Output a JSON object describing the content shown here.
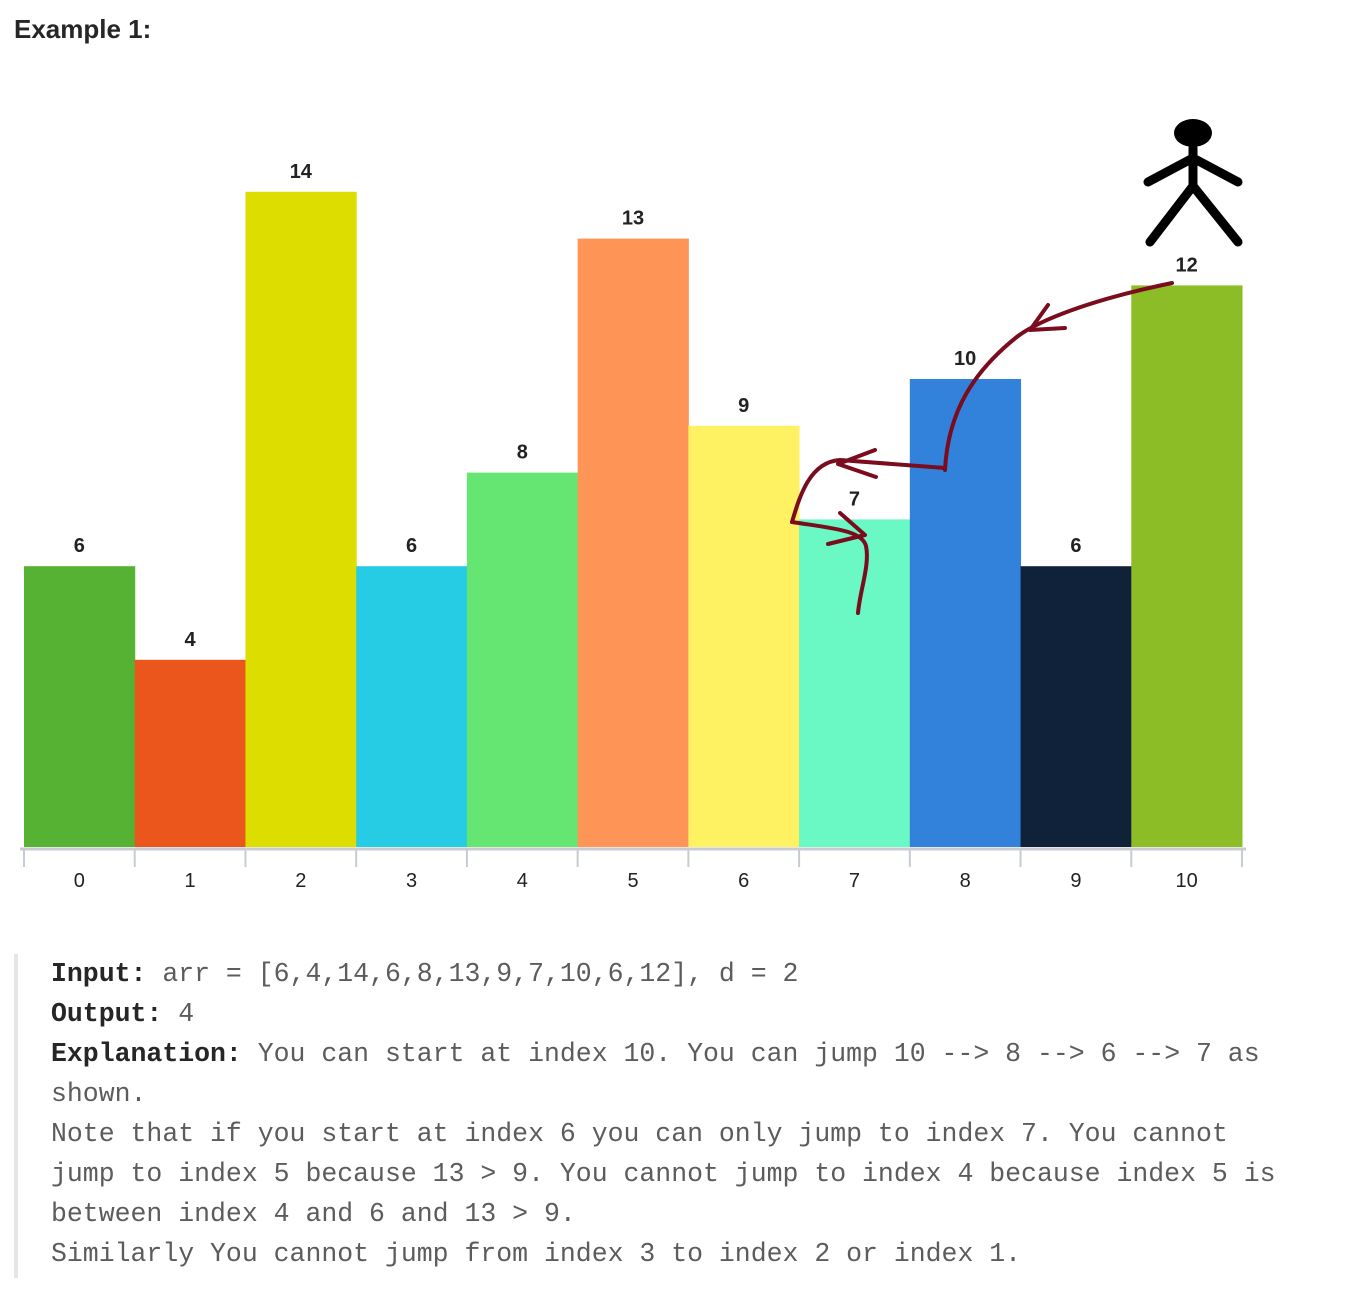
{
  "heading": "Example 1:",
  "chart_data": {
    "type": "bar",
    "categories": [
      "0",
      "1",
      "2",
      "3",
      "4",
      "5",
      "6",
      "7",
      "8",
      "9",
      "10"
    ],
    "values": [
      6,
      4,
      14,
      6,
      8,
      13,
      9,
      7,
      10,
      6,
      12
    ],
    "bar_colors": [
      "#55b233",
      "#ea561b",
      "#dddd00",
      "#26cce4",
      "#65e672",
      "#fe9556",
      "#fef262",
      "#6af8c4",
      "#3281db",
      "#10213a",
      "#8cbd26"
    ],
    "arrow_color": "#7a0c1e",
    "ylim": [
      0,
      14
    ]
  },
  "example": {
    "input_label": "Input:",
    "input_value": " arr = [6,4,14,6,8,13,9,7,10,6,12], d = 2",
    "output_label": "Output:",
    "output_value": " 4",
    "explanation_label": "Explanation:",
    "explanation_line1": " You can start at index 10. You can jump 10 --> 8 --> 6 --> 7 as",
    "explanation_line2": "shown.",
    "note_line1": "Note that if you start at index 6 you can only jump to index 7. You cannot",
    "note_line2": "jump to index 5 because 13 > 9. You cannot jump to index 4 because index 5 is",
    "note_line3": "between index 4 and 6 and 13 > 9.",
    "note_line4": "Similarly You cannot jump from index 3 to index 2 or index 1."
  }
}
